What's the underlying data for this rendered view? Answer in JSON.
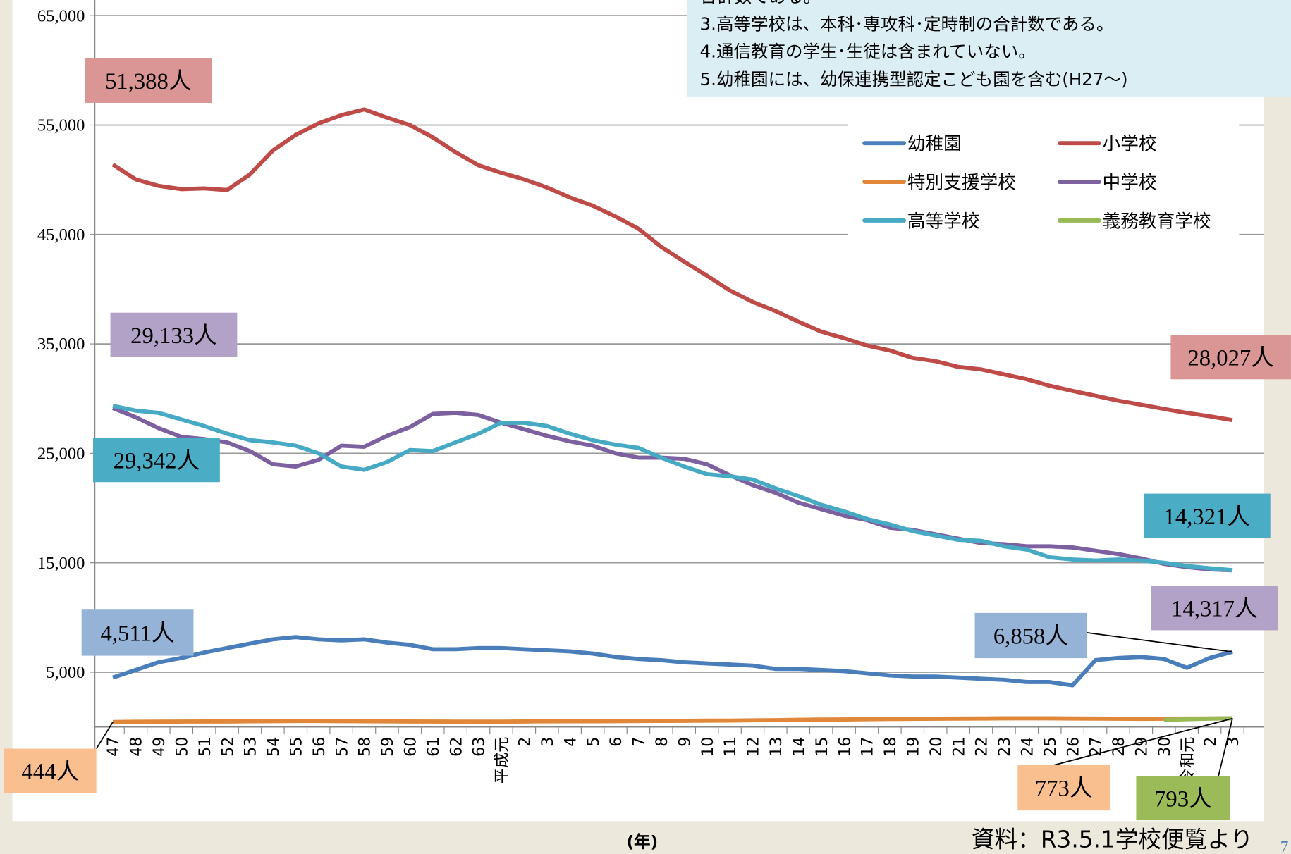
{
  "chart_data": {
    "type": "line",
    "notes": [
      "合計数である。",
      "3.高等学校は、本科･専攻科･定時制の合計数である。",
      "4.通信教育の学生･生徒は含まれていない。",
      "5.幼稚園には、幼保連携型認定こども園を含む(H27〜)"
    ],
    "x_label": "(年)",
    "source": "資料：R3.5.1学校便覧より",
    "page_number": "7",
    "categories": [
      "47",
      "48",
      "49",
      "50",
      "51",
      "52",
      "53",
      "54",
      "55",
      "56",
      "57",
      "58",
      "59",
      "60",
      "61",
      "62",
      "63",
      "平成元",
      "2",
      "3",
      "4",
      "5",
      "6",
      "7",
      "8",
      "9",
      "10",
      "11",
      "12",
      "13",
      "14",
      "15",
      "16",
      "17",
      "18",
      "19",
      "20",
      "21",
      "22",
      "23",
      "24",
      "25",
      "26",
      "27",
      "28",
      "29",
      "30",
      "令和元",
      "2",
      "3"
    ],
    "ylim": [
      0,
      65000
    ],
    "yticks": [
      {
        "value": 5000,
        "label": "5,000"
      },
      {
        "value": 15000,
        "label": "15,000"
      },
      {
        "value": 25000,
        "label": "25,000"
      },
      {
        "value": 35000,
        "label": "35,000"
      },
      {
        "value": 45000,
        "label": "45,000"
      },
      {
        "value": 55000,
        "label": "55,000"
      },
      {
        "value": 65000,
        "label": "65,000"
      }
    ],
    "grid": true,
    "legend": "top-right",
    "series": [
      {
        "name": "幼稚園",
        "color": "#4a7ebb",
        "values": [
          4511,
          5200,
          5900,
          6300,
          6800,
          7200,
          7600,
          8000,
          8200,
          8000,
          7900,
          8000,
          7700,
          7500,
          7100,
          7100,
          7200,
          7200,
          7100,
          7000,
          6900,
          6700,
          6400,
          6200,
          6100,
          5900,
          5800,
          5700,
          5600,
          5300,
          5300,
          5200,
          5100,
          4900,
          4700,
          4600,
          4600,
          4500,
          4400,
          4300,
          4100,
          4100,
          3800,
          6100,
          6300,
          6400,
          6200,
          5400,
          6300,
          6858
        ],
        "value_labels": [
          "4,511人",
          null,
          null,
          null,
          null,
          null,
          null,
          null,
          null,
          null,
          null,
          null,
          null,
          null,
          null,
          null,
          null,
          null,
          null,
          null,
          null,
          null,
          null,
          null,
          null,
          null,
          null,
          null,
          null,
          null,
          null,
          null,
          null,
          null,
          null,
          null,
          null,
          null,
          null,
          null,
          null,
          null,
          null,
          null,
          null,
          null,
          null,
          null,
          null,
          "6,858人"
        ]
      },
      {
        "name": "小学校",
        "color": "#be4b48",
        "values": [
          51388,
          50040,
          49440,
          49140,
          49210,
          49060,
          50490,
          52670,
          54100,
          55150,
          55900,
          56430,
          55680,
          55000,
          53880,
          52520,
          51320,
          50640,
          50040,
          49290,
          48380,
          47630,
          46650,
          45530,
          43870,
          42520,
          41240,
          39890,
          38840,
          38010,
          37030,
          36130,
          35530,
          34850,
          34400,
          33720,
          33420,
          32900,
          32670,
          32220,
          31770,
          31170,
          30710,
          30260,
          29810,
          29440,
          29060,
          28690,
          28390,
          28027
        ],
        "value_labels": [
          "51,388人",
          null,
          null,
          null,
          null,
          null,
          null,
          null,
          null,
          null,
          null,
          null,
          null,
          null,
          null,
          null,
          null,
          null,
          null,
          null,
          null,
          null,
          null,
          null,
          null,
          null,
          null,
          null,
          null,
          null,
          null,
          null,
          null,
          null,
          null,
          null,
          null,
          null,
          null,
          null,
          null,
          null,
          null,
          null,
          null,
          null,
          null,
          null,
          null,
          "28,027人"
        ]
      },
      {
        "name": "特別支援学校",
        "color": "#e0873a",
        "values": [
          444,
          470,
          480,
          490,
          500,
          500,
          520,
          530,
          540,
          540,
          530,
          520,
          510,
          500,
          490,
          480,
          480,
          480,
          500,
          510,
          520,
          520,
          530,
          540,
          550,
          560,
          570,
          580,
          600,
          620,
          650,
          670,
          680,
          700,
          720,
          740,
          750,
          760,
          770,
          780,
          780,
          780,
          770,
          760,
          750,
          740,
          750,
          760,
          770,
          773
        ],
        "value_labels": [
          "444人",
          null,
          null,
          null,
          null,
          null,
          null,
          null,
          null,
          null,
          null,
          null,
          null,
          null,
          null,
          null,
          null,
          null,
          null,
          null,
          null,
          null,
          null,
          null,
          null,
          null,
          null,
          null,
          null,
          null,
          null,
          null,
          null,
          null,
          null,
          null,
          null,
          null,
          null,
          null,
          null,
          null,
          null,
          null,
          null,
          null,
          null,
          null,
          null,
          "773人"
        ]
      },
      {
        "name": "中学校",
        "color": "#7d60a0",
        "values": [
          29133,
          28300,
          27300,
          26500,
          26300,
          26000,
          25200,
          24000,
          23800,
          24400,
          25700,
          25600,
          26600,
          27400,
          28600,
          28700,
          28500,
          27800,
          27200,
          26600,
          26100,
          25700,
          25000,
          24600,
          24600,
          24500,
          24000,
          23000,
          22100,
          21400,
          20500,
          19900,
          19300,
          18900,
          18200,
          18000,
          17600,
          17200,
          16800,
          16700,
          16500,
          16500,
          16400,
          16100,
          15800,
          15400,
          14900,
          14600,
          14400,
          14317
        ],
        "value_labels": [
          "29,133人",
          null,
          null,
          null,
          null,
          null,
          null,
          null,
          null,
          null,
          null,
          null,
          null,
          null,
          null,
          null,
          null,
          null,
          null,
          null,
          null,
          null,
          null,
          null,
          null,
          null,
          null,
          null,
          null,
          null,
          null,
          null,
          null,
          null,
          null,
          null,
          null,
          null,
          null,
          null,
          null,
          null,
          null,
          null,
          null,
          null,
          null,
          null,
          null,
          "14,317人"
        ]
      },
      {
        "name": "高等学校",
        "color": "#46aac5",
        "values": [
          29342,
          28900,
          28700,
          28100,
          27500,
          26800,
          26200,
          26000,
          25700,
          25000,
          23800,
          23500,
          24200,
          25300,
          25200,
          26000,
          26800,
          27800,
          27800,
          27500,
          26800,
          26200,
          25800,
          25500,
          24600,
          23800,
          23100,
          22900,
          22600,
          21800,
          21100,
          20300,
          19700,
          19000,
          18500,
          17900,
          17500,
          17100,
          17000,
          16500,
          16200,
          15500,
          15300,
          15200,
          15300,
          15200,
          15000,
          14700,
          14500,
          14321
        ],
        "value_labels": [
          "29,342人",
          null,
          null,
          null,
          null,
          null,
          null,
          null,
          null,
          null,
          null,
          null,
          null,
          null,
          null,
          null,
          null,
          null,
          null,
          null,
          null,
          null,
          null,
          null,
          null,
          null,
          null,
          null,
          null,
          null,
          null,
          null,
          null,
          null,
          null,
          null,
          null,
          null,
          null,
          null,
          null,
          null,
          null,
          null,
          null,
          null,
          null,
          null,
          null,
          "14,321人"
        ]
      },
      {
        "name": "義務教育学校",
        "color": "#98b954",
        "values": [
          null,
          null,
          null,
          null,
          null,
          null,
          null,
          null,
          null,
          null,
          null,
          null,
          null,
          null,
          null,
          null,
          null,
          null,
          null,
          null,
          null,
          null,
          null,
          null,
          null,
          null,
          null,
          null,
          null,
          null,
          null,
          null,
          null,
          null,
          null,
          null,
          null,
          null,
          null,
          null,
          null,
          null,
          null,
          null,
          null,
          null,
          640,
          700,
          760,
          793
        ],
        "value_labels": [
          null,
          null,
          null,
          null,
          null,
          null,
          null,
          null,
          null,
          null,
          null,
          null,
          null,
          null,
          null,
          null,
          null,
          null,
          null,
          null,
          null,
          null,
          null,
          null,
          null,
          null,
          null,
          null,
          null,
          null,
          null,
          null,
          null,
          null,
          null,
          null,
          null,
          null,
          null,
          null,
          null,
          null,
          null,
          null,
          null,
          null,
          null,
          null,
          null,
          "793人"
        ]
      }
    ]
  }
}
